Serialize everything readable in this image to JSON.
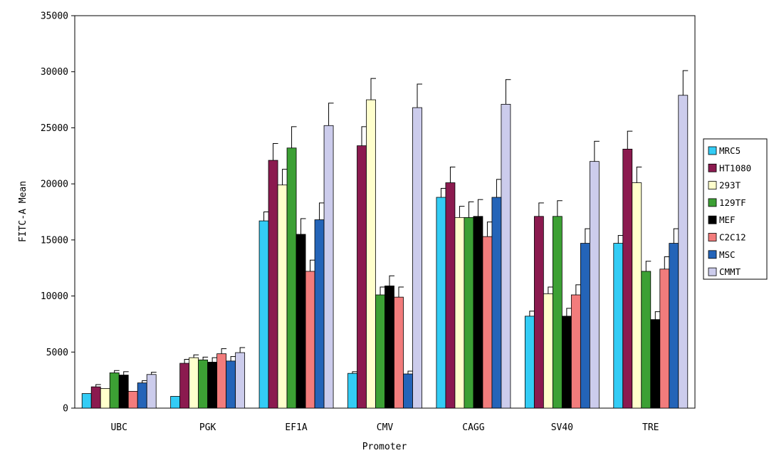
{
  "chart_data": {
    "type": "bar",
    "xlabel": "Promoter",
    "ylabel": "FITC-A Mean",
    "ylim": [
      0,
      35000
    ],
    "yticks": [
      0,
      5000,
      10000,
      15000,
      20000,
      25000,
      30000,
      35000
    ],
    "grid": false,
    "legend_position": "right",
    "categories": [
      "UBC",
      "PGK",
      "EF1A",
      "CMV",
      "CAGG",
      "SV40",
      "TRE"
    ],
    "series": [
      {
        "name": "MRC5",
        "color": "#33ccf5",
        "values": [
          1300,
          1050,
          16700,
          3100,
          18800,
          8200,
          14700
        ],
        "errors": [
          0,
          0,
          800,
          150,
          800,
          450,
          700
        ]
      },
      {
        "name": "HT1080",
        "color": "#8b1a4f",
        "values": [
          1900,
          4000,
          22100,
          23400,
          20100,
          17100,
          23100
        ],
        "errors": [
          200,
          350,
          1500,
          1700,
          1400,
          1200,
          1600
        ]
      },
      {
        "name": "293T",
        "color": "#ffffcc",
        "values": [
          1750,
          4500,
          19900,
          27500,
          17000,
          10200,
          20100
        ],
        "errors": [
          0,
          250,
          1400,
          1900,
          1000,
          600,
          1400
        ]
      },
      {
        "name": "129TF",
        "color": "#3ca034",
        "values": [
          3150,
          4300,
          23200,
          10100,
          17000,
          17100,
          12200
        ],
        "errors": [
          200,
          250,
          1900,
          700,
          1400,
          1400,
          900
        ]
      },
      {
        "name": "MEF",
        "color": "#000000",
        "values": [
          2950,
          4100,
          15500,
          10900,
          17100,
          8200,
          7900
        ],
        "errors": [
          300,
          400,
          1400,
          900,
          1500,
          700,
          700
        ]
      },
      {
        "name": "C2C12",
        "color": "#f27c7c",
        "values": [
          1500,
          4850,
          12200,
          9900,
          15300,
          10100,
          12400
        ],
        "errors": [
          0,
          450,
          1000,
          900,
          1300,
          900,
          1100
        ]
      },
      {
        "name": "MSC",
        "color": "#2464b8",
        "values": [
          2250,
          4200,
          16800,
          3050,
          18800,
          14700,
          14700
        ],
        "errors": [
          200,
          400,
          1500,
          250,
          1600,
          1300,
          1300
        ]
      },
      {
        "name": "CMMT",
        "color": "#ccccec",
        "values": [
          3000,
          4950,
          25200,
          26800,
          27100,
          22000,
          27900
        ],
        "errors": [
          200,
          450,
          2000,
          2100,
          2200,
          1800,
          2200
        ]
      }
    ]
  }
}
